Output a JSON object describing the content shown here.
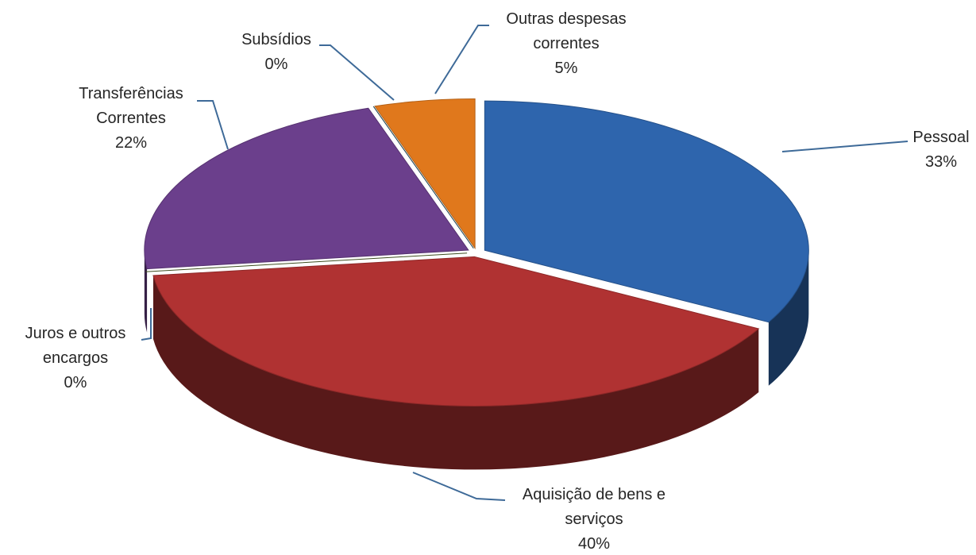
{
  "chart_data": {
    "type": "pie",
    "categories": [
      "Pessoal",
      "Aquisição de bens e serviços",
      "Juros e outros encargos",
      "Transferências Correntes",
      "Subsídios",
      "Outras despesas correntes"
    ],
    "values": [
      33,
      40,
      0,
      22,
      0,
      5
    ],
    "value_labels": [
      "33%",
      "40%",
      "0%",
      "22%",
      "0%",
      "5%"
    ],
    "colors": [
      "#2e65ad",
      "#b03232",
      "#4f6228",
      "#6b3f8c",
      "#1f4e5e",
      "#e0781c"
    ]
  }
}
